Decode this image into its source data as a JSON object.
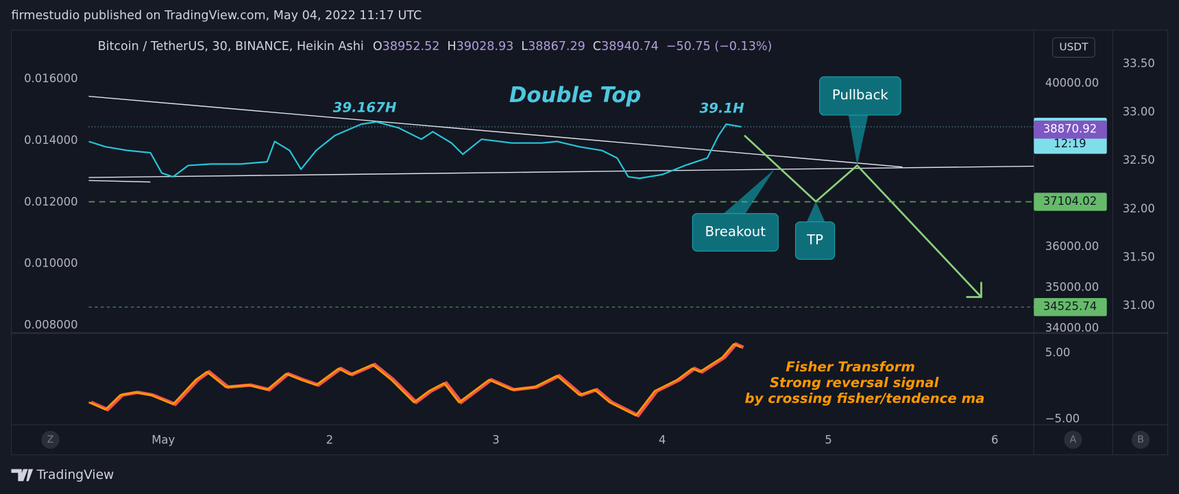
{
  "header": {
    "publisher": "firmestudio published on TradingView.com, May 04, 2022 11:17 UTC"
  },
  "chart_data": [
    {
      "type": "line",
      "symbol": "Bitcoin / TetherUS, 30, BINANCE, Heikin Ashi",
      "ohlc": [
        {
          "label": "O",
          "value": 38952.52
        },
        {
          "label": "H",
          "value": 39028.93
        },
        {
          "label": "L",
          "value": 38867.29
        },
        {
          "label": "C",
          "value": 38940.74
        }
      ],
      "change": "−50.75 (−0.13%)",
      "currency": "USDT",
      "x": [
        0.552,
        0.652,
        0.787,
        0.923,
        0.991,
        1.059,
        1.149,
        1.285,
        1.466,
        1.624,
        1.67,
        1.76,
        1.828,
        1.919,
        2.032,
        2.19,
        2.281,
        2.416,
        2.552,
        2.62,
        2.733,
        2.801,
        2.914,
        3.095,
        3.276,
        3.367,
        3.502,
        3.638,
        3.729,
        3.796,
        3.864,
        4.0,
        4.136,
        4.271,
        4.339,
        4.385,
        4.475
      ],
      "series": [
        {
          "color": "#26c6da",
          "values": [
            38582,
            38453,
            38361,
            38305,
            37808,
            37716,
            37992,
            38029,
            38029,
            38084,
            38582,
            38361,
            37900,
            38361,
            38729,
            39005,
            39061,
            38913,
            38637,
            38821,
            38545,
            38268,
            38637,
            38545,
            38545,
            38582,
            38453,
            38361,
            38176,
            37716,
            37679,
            37771,
            37992,
            38176,
            38729,
            39005,
            38940.74
          ]
        }
      ],
      "xlim": [
        0.086,
        6.235
      ],
      "ylim": [
        33890,
        41270
      ],
      "yticks": [
        {
          "value": 40000,
          "label": "40000.00"
        },
        {
          "value": 36000,
          "label": "36000.00"
        },
        {
          "value": 35000,
          "label": "35000.00"
        },
        {
          "value": 34000,
          "label": "34000.00"
        }
      ],
      "y2lim": [
        0.007756,
        0.01754
      ],
      "y2ticks": [
        {
          "value": 0.016,
          "label": "0.016000"
        },
        {
          "value": 0.014,
          "label": "0.014000"
        },
        {
          "value": 0.012,
          "label": "0.012000"
        },
        {
          "value": 0.01,
          "label": "0.010000"
        },
        {
          "value": 0.008,
          "label": "0.008000"
        }
      ],
      "y3lim": [
        30.72,
        33.834
      ],
      "y3ticks": [
        {
          "value": 33.5,
          "label": "33.50"
        },
        {
          "value": 33.0,
          "label": "33.00"
        },
        {
          "value": 32.5,
          "label": "32.50"
        },
        {
          "value": 32.0,
          "label": "32.00"
        },
        {
          "value": 31.5,
          "label": "31.50"
        },
        {
          "value": 31.0,
          "label": "31.00"
        }
      ],
      "price_labels": [
        {
          "value": 38940.74,
          "color": "#80deea",
          "text_color": "#131722",
          "line": "dotted"
        },
        {
          "value": 38870.92,
          "color": "#7e57c2",
          "text_color": "#ffffff"
        },
        {
          "value": 37104.02,
          "color": "#66bb6a",
          "text_color": "#131722",
          "line": "dashed"
        },
        {
          "value": 34525.74,
          "color": "#66bb6a",
          "text_color": "#131722",
          "line": "thin"
        }
      ],
      "countdown": "12:19",
      "annotations": {
        "title": "Double Top",
        "top1": "39.167H",
        "top2": "39.1H",
        "breakout": "Breakout",
        "tp": "TP",
        "pullback": "Pullback"
      }
    },
    {
      "type": "line",
      "title": "Fisher Transform",
      "notes": [
        "Strong reversal signal",
        "by crossing fisher/tendence ma"
      ],
      "x": [
        0.552,
        0.652,
        0.742,
        0.833,
        0.923,
        1.059,
        1.195,
        1.262,
        1.376,
        1.511,
        1.624,
        1.738,
        1.828,
        1.919,
        2.054,
        2.122,
        2.258,
        2.371,
        2.507,
        2.597,
        2.688,
        2.778,
        2.959,
        3.095,
        3.231,
        3.367,
        3.502,
        3.593,
        3.683,
        3.842,
        3.955,
        4.09,
        4.181,
        4.226,
        4.362,
        4.43,
        4.475
      ],
      "series": [
        {
          "color": "#ff9800",
          "values": [
            -2.4,
            -3.5,
            -1.3,
            -0.9,
            -1.3,
            -2.7,
            1.0,
            2.2,
            -0.1,
            0.2,
            -0.5,
            1.9,
            1.0,
            0.2,
            2.7,
            1.8,
            3.3,
            1.0,
            -2.4,
            -0.7,
            0.5,
            -2.4,
            1.0,
            -0.5,
            -0.1,
            1.6,
            -1.3,
            -0.5,
            -2.4,
            -4.4,
            -0.7,
            1.0,
            2.7,
            2.2,
            4.4,
            6.4,
            5.9
          ]
        }
      ],
      "ylim": [
        -5.8,
        8.07
      ],
      "yticks": [
        {
          "value": 5,
          "label": "5.00"
        },
        {
          "value": -5,
          "label": "−5.00"
        }
      ],
      "xticks": [
        {
          "value": 1,
          "label": "May"
        },
        2,
        3,
        4,
        5,
        6
      ]
    }
  ],
  "toolbar": [
    "Z",
    "A",
    "B"
  ],
  "footer": {
    "brand": "TradingView"
  }
}
